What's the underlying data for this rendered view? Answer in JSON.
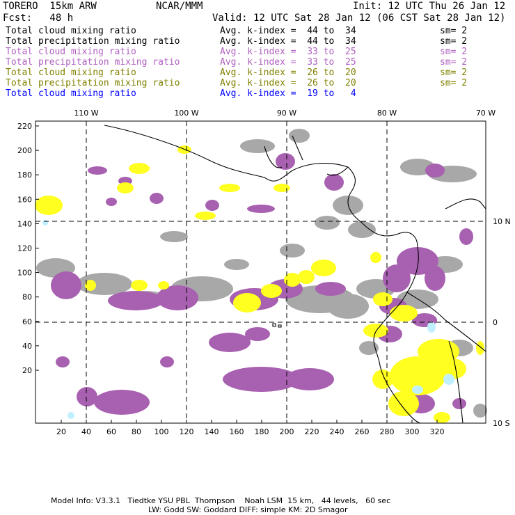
{
  "header": {
    "model": "TORERO  15km ARW",
    "org": "NCAR/MMM",
    "init": "Init: 12 UTC Thu 26 Jan 12",
    "fcst": "Fcst:   48 h",
    "valid": "Valid: 12 UTC Sat 28 Jan 12 (06 CST Sat 28 Jan 12)"
  },
  "legend": [
    {
      "field": "Total cloud mixing ratio",
      "kindex": "Avg. k-index =  44 to  34",
      "sm": "sm= 2",
      "color": "#000000"
    },
    {
      "field": "Total precipitation mixing ratio",
      "kindex": "Avg. k-index =  44 to  34",
      "sm": "sm= 2",
      "color": "#000000"
    },
    {
      "field": "Total cloud mixing ratio",
      "kindex": "Avg. k-index =  33 to  25",
      "sm": "sm= 2",
      "color": "#b060c0"
    },
    {
      "field": "Total precipitation mixing ratio",
      "kindex": "Avg. k-index =  33 to  25",
      "sm": "sm= 2",
      "color": "#b060c0"
    },
    {
      "field": "Total cloud mixing ratio",
      "kindex": "Avg. k-index =  26 to  20",
      "sm": "sm= 2",
      "color": "#808000"
    },
    {
      "field": "Total precipitation mixing ratio",
      "kindex": "Avg. k-index =  26 to  20",
      "sm": "sm= 2",
      "color": "#808000"
    },
    {
      "field": "Total cloud mixing ratio",
      "kindex": "Avg. k-index =  19 to   4",
      "sm": "",
      "color": "#0000ff"
    }
  ],
  "map": {
    "lon_labels": [
      "110 W",
      "100 W",
      "90 W",
      "80 W",
      "70 W"
    ],
    "lat_labels": [
      "10 N",
      "0",
      "10 S"
    ],
    "x_ticks": [
      "20",
      "40",
      "60",
      "80",
      "100",
      "120",
      "140",
      "160",
      "180",
      "200",
      "220",
      "240",
      "260",
      "280",
      "300",
      "320"
    ],
    "y_ticks": [
      "220",
      "200",
      "180",
      "160",
      "140",
      "120",
      "100",
      "80",
      "60",
      "40",
      "20"
    ],
    "colors": {
      "gray": "#a8a8a8",
      "purple": "#a860b0",
      "yellow": "#ffff20",
      "lightblue": "#c0f0ff"
    }
  },
  "footer": {
    "line1": "Model Info: V3.3.1   Tiedtke YSU PBL  Thompson    Noah LSM  15 km,   44 levels,   60 sec",
    "line2": "LW: Godd SW: Goddard DIFF: simple KM: 2D Smagor"
  }
}
